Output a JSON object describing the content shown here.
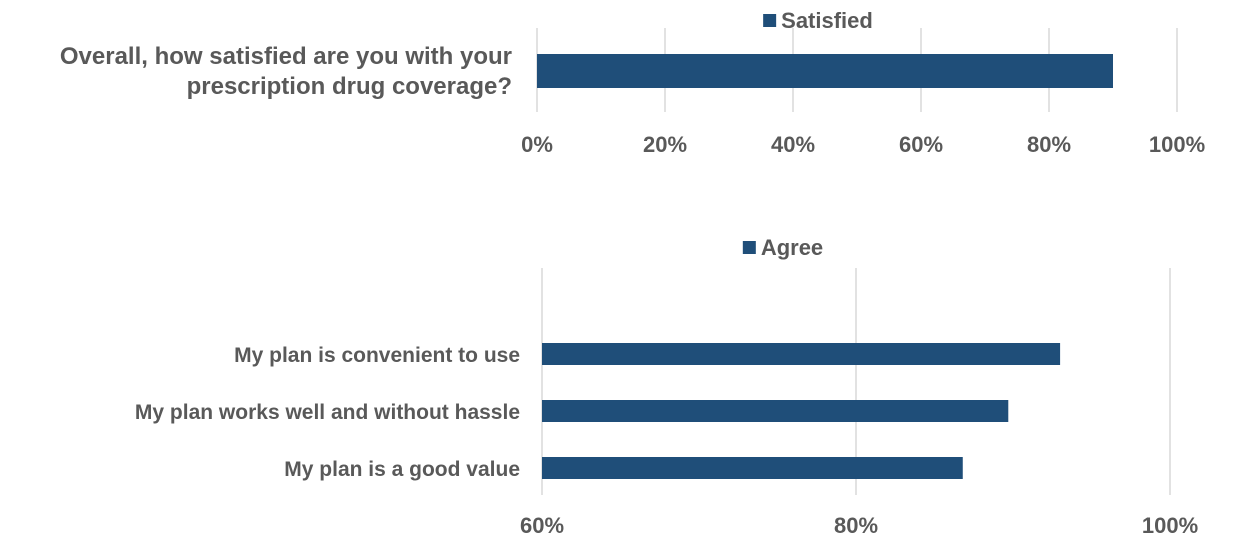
{
  "chart_data": [
    {
      "type": "bar",
      "orientation": "horizontal",
      "categories": [
        "Overall, how satisfied are you with your prescription drug coverage?"
      ],
      "category_lines": [
        [
          "Overall, how satisfied are you with your",
          "prescription drug coverage?"
        ]
      ],
      "series": [
        {
          "name": "Satisfied",
          "values": [
            0.9
          ]
        }
      ],
      "xlim": [
        0,
        1
      ],
      "ticks": [
        0,
        0.2,
        0.4,
        0.6,
        0.8,
        1.0
      ],
      "tick_labels": [
        "0%",
        "20%",
        "40%",
        "60%",
        "80%",
        "100%"
      ],
      "legend": "top",
      "grid": true,
      "color": "#1f4e79"
    },
    {
      "type": "bar",
      "orientation": "horizontal",
      "categories": [
        "My plan is convenient to use",
        "My plan works well and without hassle",
        "My plan is a good value"
      ],
      "series": [
        {
          "name": "Agree",
          "values": [
            0.93,
            0.897,
            0.868
          ]
        }
      ],
      "xlim": [
        0.6,
        1
      ],
      "ticks": [
        0.6,
        0.8,
        1.0
      ],
      "tick_labels": [
        "60%",
        "80%",
        "100%"
      ],
      "legend": "top",
      "grid": true,
      "color": "#1f4e79"
    }
  ]
}
